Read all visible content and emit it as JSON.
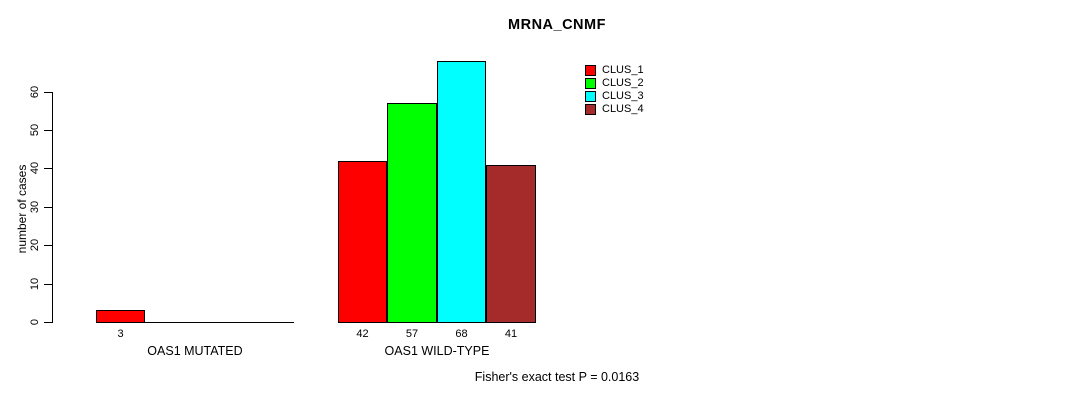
{
  "chart_data": {
    "type": "bar",
    "title": "MRNA_CNMF",
    "ylabel": "number of cases",
    "xlabel": "",
    "ylim": [
      0,
      60
    ],
    "yticks": [
      0,
      10,
      20,
      30,
      40,
      50,
      60
    ],
    "grid": false,
    "legend_position": "top-right-inside",
    "categories": [
      "OAS1 MUTATED",
      "OAS1 WILD-TYPE"
    ],
    "series": [
      {
        "name": "CLUS_1",
        "color": "#ff0000",
        "values": [
          3,
          42
        ]
      },
      {
        "name": "CLUS_2",
        "color": "#00ff00",
        "values": [
          0,
          57
        ]
      },
      {
        "name": "CLUS_3",
        "color": "#00ffff",
        "values": [
          0,
          68
        ]
      },
      {
        "name": "CLUS_4",
        "color": "#a52a2a",
        "values": [
          0,
          41
        ]
      }
    ],
    "groups": [
      {
        "label": "OAS1 MUTATED",
        "values": [
          3,
          0,
          0,
          0
        ],
        "value_labels": [
          "3",
          "",
          "",
          ""
        ]
      },
      {
        "label": "OAS1 WILD-TYPE",
        "values": [
          42,
          57,
          68,
          41
        ],
        "value_labels": [
          "42",
          "57",
          "68",
          "41"
        ]
      }
    ],
    "annotation": "Fisher's exact test P = 0.0163",
    "axis_color": "#000000",
    "background_color": "#ffffff"
  }
}
